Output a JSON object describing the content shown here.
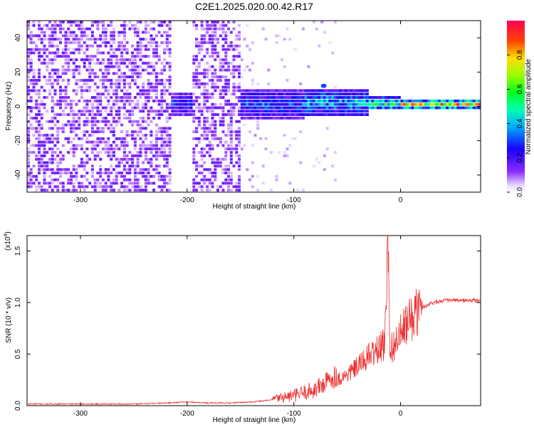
{
  "title": "C2E1.2025.020.00.42.R17",
  "colors": {
    "line": "#ee3030",
    "axis": "#000000",
    "spectrogram_base": "#7a1bf0",
    "spectrogram_light": "#d6b8f7",
    "colormap": [
      "#ffffff",
      "#6a00ff",
      "#0000ff",
      "#00ccff",
      "#00ff66",
      "#66ff00",
      "#ffee00",
      "#ff3300",
      "#ff0066"
    ]
  },
  "chart_data": [
    {
      "type": "heatmap",
      "title": "C2E1.2025.020.00.42.R17",
      "xlabel": "Height of straight line (km)",
      "ylabel": "Frequency (Hz)",
      "xlim": [
        -350,
        75
      ],
      "ylim": [
        -50,
        50
      ],
      "xticks": [
        -300,
        -200,
        -100,
        0
      ],
      "yticks": [
        -40,
        -20,
        0,
        20,
        40
      ],
      "colorbar": {
        "label": "Normalized spectral amplitude",
        "range": [
          0,
          1
        ],
        "ticks": [
          0.0,
          0.2,
          0.4,
          0.6,
          0.8
        ]
      },
      "regions": [
        {
          "x": [
            -350,
            -215
          ],
          "freq": [
            -50,
            50
          ],
          "amplitude": 0.12,
          "description_level": "broadband"
        },
        {
          "x": [
            -215,
            -195
          ],
          "freq": [
            -7,
            7
          ],
          "amplitude": 0.3
        },
        {
          "x": [
            -195,
            -150
          ],
          "freq": [
            -50,
            50
          ],
          "amplitude": 0.1
        },
        {
          "x": [
            -150,
            -90
          ],
          "freq": [
            -8,
            8
          ],
          "amplitude": 0.35
        },
        {
          "x": [
            -90,
            -30
          ],
          "freq": [
            -6,
            8
          ],
          "amplitude": 0.45
        },
        {
          "x": [
            -30,
            0
          ],
          "freq": [
            -3,
            4
          ],
          "amplitude": 0.6
        },
        {
          "x": [
            0,
            75
          ],
          "freq": [
            -2,
            2
          ],
          "amplitude": 0.85
        }
      ],
      "feature_points": [
        {
          "x": -72,
          "freq": 12,
          "amplitude": 0.3
        }
      ]
    },
    {
      "type": "line",
      "xlabel": "Height of straight line (km)",
      "ylabel": "SNR (10 * v/v)",
      "y_multiplier": "(x10",
      "y_multiplier_exp": "4",
      "xlim": [
        -350,
        75
      ],
      "ylim": [
        0,
        1.65
      ],
      "xticks": [
        -300,
        -200,
        -100,
        0
      ],
      "yticks": [
        "0.0",
        "0.5",
        "1.0",
        "1.5"
      ],
      "series": [
        {
          "x": [
            -350,
            -300,
            -250,
            -220,
            -200,
            -180,
            -160,
            -140,
            -120,
            -100,
            -80,
            -70,
            -60,
            -50,
            -40,
            -30,
            -20,
            -15,
            -12,
            -10,
            -5,
            0,
            10,
            20,
            30,
            40,
            50,
            60,
            75
          ],
          "y": [
            0.01,
            0.01,
            0.01,
            0.02,
            0.03,
            0.02,
            0.02,
            0.03,
            0.05,
            0.07,
            0.12,
            0.18,
            0.25,
            0.3,
            0.38,
            0.48,
            0.55,
            0.6,
            1.65,
            0.55,
            0.6,
            0.7,
            0.85,
            0.95,
            1.0,
            1.02,
            1.02,
            1.02,
            1.02
          ]
        }
      ]
    }
  ]
}
